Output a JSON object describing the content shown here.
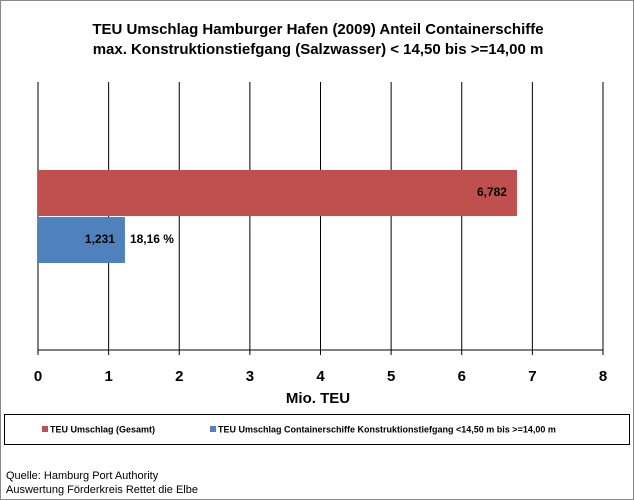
{
  "chart_data": {
    "type": "bar",
    "orientation": "horizontal",
    "title": [
      "TEU Umschlag Hamburger Hafen (2009)  Anteil Containerschiffe",
      "max. Konstruktionstiefgang (Salzwasser) < 14,50 bis >=14,00 m"
    ],
    "categories": [
      null
    ],
    "series": [
      {
        "name": "TEU Umschlag (Gesamt)",
        "color": "#c0504d",
        "values": [
          6.782
        ],
        "value_labels": [
          "6,782"
        ]
      },
      {
        "name": "TEU Umschlag Containerschiffe Konstruktionstiefgang <14,50 m bis >=14,00 m",
        "color": "#4f81bd",
        "values": [
          1.231
        ],
        "value_labels": [
          "1,231"
        ]
      }
    ],
    "annotation": "18,16 %",
    "x_label": "Mio. TEU",
    "xlim": [
      0,
      8
    ],
    "xticks": [
      0,
      1,
      2,
      3,
      4,
      5,
      6,
      7,
      8
    ],
    "grid": true,
    "legend": "bottom",
    "source": [
      "Quelle: Hamburg Port Authority",
      "Auswertung Förderkreis Rettet die Elbe"
    ]
  }
}
